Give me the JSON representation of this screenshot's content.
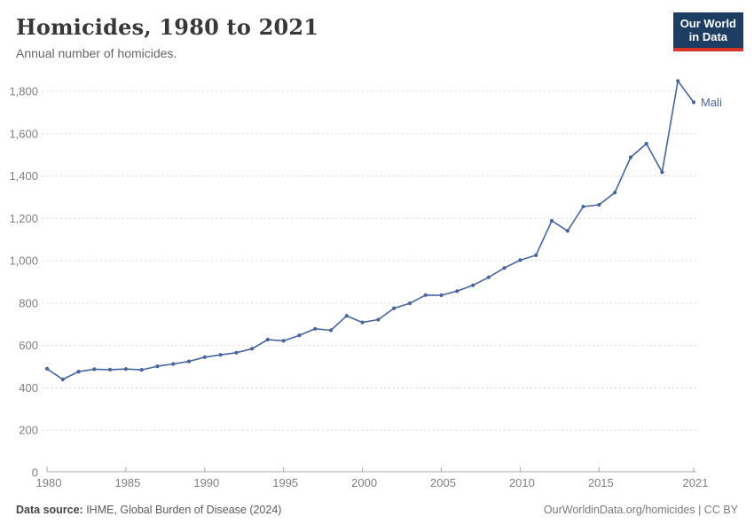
{
  "header": {
    "title": "Homicides, 1980 to 2021",
    "subtitle": "Annual number of homicides.",
    "logo_line1": "Our World",
    "logo_line2": "in Data"
  },
  "colors": {
    "series_line": "#46649f",
    "grid": "#dcdcdc",
    "axis": "#a8a8a8",
    "tick_label": "#7f7f7f",
    "logo_bg": "#1d3d63",
    "logo_bar": "#d8352a"
  },
  "chart_data": {
    "type": "line",
    "title": "Homicides, 1980 to 2021",
    "subtitle": "Annual number of homicides.",
    "xlabel": "",
    "ylabel": "",
    "grid": "horizontal-dashed",
    "legend_position": "end-of-line-label",
    "xlim": [
      1980,
      2021
    ],
    "ylim": [
      0,
      1900
    ],
    "x_ticks": [
      1980,
      1985,
      1990,
      1995,
      2000,
      2005,
      2010,
      2015,
      2021
    ],
    "y_ticks": [
      0,
      200,
      400,
      600,
      800,
      1000,
      1200,
      1400,
      1600,
      1800
    ],
    "x": [
      1980,
      1981,
      1982,
      1983,
      1984,
      1985,
      1986,
      1987,
      1988,
      1989,
      1990,
      1991,
      1992,
      1993,
      1994,
      1995,
      1996,
      1997,
      1998,
      1999,
      2000,
      2001,
      2002,
      2003,
      2004,
      2005,
      2006,
      2007,
      2008,
      2009,
      2010,
      2011,
      2012,
      2013,
      2014,
      2015,
      2016,
      2017,
      2018,
      2019,
      2020,
      2021
    ],
    "series": [
      {
        "name": "Mali",
        "color": "#46649f",
        "values": [
          490,
          440,
          477,
          488,
          486,
          489,
          485,
          502,
          513,
          525,
          545,
          556,
          566,
          585,
          628,
          622,
          648,
          679,
          672,
          740,
          709,
          722,
          776,
          799,
          838,
          837,
          857,
          884,
          922,
          966,
          1003,
          1026,
          1189,
          1141,
          1256,
          1264,
          1322,
          1488,
          1553,
          1418,
          1849,
          1748
        ]
      }
    ]
  },
  "footer": {
    "source_label": "Data source:",
    "source_text": " IHME, Global Burden of Disease (2024)",
    "credit": "OurWorldinData.org/homicides | CC BY"
  }
}
